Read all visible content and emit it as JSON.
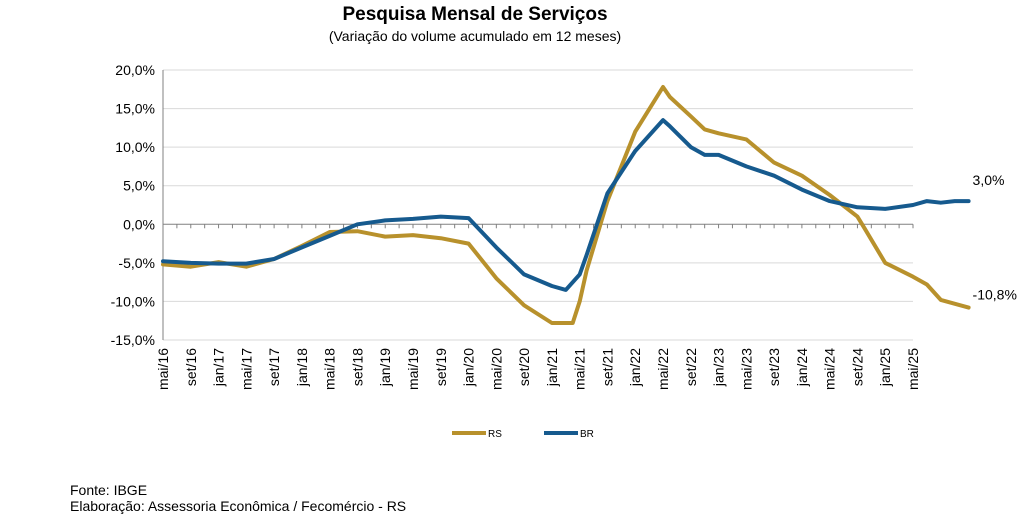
{
  "chart_data": {
    "type": "line",
    "title": "Pesquisa Mensal de Serviços",
    "subtitle": "(Variação do volume acumulado em 12 meses)",
    "xlabel": "",
    "ylabel": "",
    "ylim": [
      -15,
      20
    ],
    "y_ticks": [
      20,
      15,
      10,
      5,
      0,
      -5,
      -10,
      -15
    ],
    "y_tick_labels": [
      "20,0%",
      "15,0%",
      "10,0%",
      "5,0%",
      "0,0%",
      "-5,0%",
      "-10,0%",
      "-15,0%"
    ],
    "x_tick_labels": [
      "mai/16",
      "set/16",
      "jan/17",
      "mai/17",
      "set/17",
      "jan/18",
      "mai/18",
      "set/18",
      "jan/19",
      "mai/19",
      "set/19",
      "jan/20",
      "mai/20",
      "set/20",
      "jan/21",
      "mai/21",
      "set/21",
      "jan/22",
      "mai/22",
      "set/22",
      "jan/23",
      "mai/23",
      "set/23",
      "jan/24",
      "mai/24",
      "set/24",
      "jan/25",
      "mai/25"
    ],
    "grid": true,
    "legend": "bottom",
    "series": [
      {
        "name": "RS",
        "color": "#b8912c",
        "points": [
          [
            0,
            -5.2
          ],
          [
            4,
            -5.5
          ],
          [
            8,
            -4.9
          ],
          [
            12,
            -5.5
          ],
          [
            16,
            -4.5
          ],
          [
            20,
            -2.8
          ],
          [
            24,
            -1.0
          ],
          [
            28,
            -0.9
          ],
          [
            32,
            -1.6
          ],
          [
            36,
            -1.4
          ],
          [
            40,
            -1.8
          ],
          [
            44,
            -2.5
          ],
          [
            48,
            -7.0
          ],
          [
            52,
            -10.5
          ],
          [
            56,
            -12.8
          ],
          [
            59,
            -12.8
          ],
          [
            60,
            -10.0
          ],
          [
            61,
            -6.0
          ],
          [
            64,
            3.0
          ],
          [
            68,
            12.0
          ],
          [
            72,
            17.8
          ],
          [
            73,
            16.5
          ],
          [
            76,
            14.0
          ],
          [
            78,
            12.3
          ],
          [
            80,
            11.8
          ],
          [
            84,
            11.0
          ],
          [
            88,
            8.0
          ],
          [
            92,
            6.3
          ],
          [
            96,
            3.8
          ],
          [
            100,
            1.0
          ],
          [
            101,
            -0.5
          ],
          [
            104,
            -5.0
          ],
          [
            108,
            -6.8
          ],
          [
            110,
            -7.8
          ],
          [
            112,
            -9.8
          ],
          [
            116,
            -10.8
          ]
        ]
      },
      {
        "name": "BR",
        "color": "#165a8e",
        "points": [
          [
            0,
            -4.8
          ],
          [
            4,
            -5.0
          ],
          [
            8,
            -5.1
          ],
          [
            12,
            -5.1
          ],
          [
            16,
            -4.5
          ],
          [
            20,
            -3.0
          ],
          [
            24,
            -1.5
          ],
          [
            28,
            0.0
          ],
          [
            32,
            0.5
          ],
          [
            36,
            0.7
          ],
          [
            40,
            1.0
          ],
          [
            44,
            0.8
          ],
          [
            48,
            -3.0
          ],
          [
            52,
            -6.5
          ],
          [
            56,
            -8.0
          ],
          [
            58,
            -8.5
          ],
          [
            60,
            -6.5
          ],
          [
            61,
            -4.0
          ],
          [
            64,
            4.0
          ],
          [
            68,
            9.5
          ],
          [
            72,
            13.5
          ],
          [
            73,
            12.7
          ],
          [
            76,
            10.0
          ],
          [
            78,
            9.0
          ],
          [
            80,
            9.0
          ],
          [
            84,
            7.5
          ],
          [
            88,
            6.3
          ],
          [
            92,
            4.5
          ],
          [
            96,
            3.0
          ],
          [
            100,
            2.2
          ],
          [
            104,
            2.0
          ],
          [
            108,
            2.5
          ],
          [
            110,
            3.0
          ],
          [
            112,
            2.8
          ],
          [
            114,
            3.0
          ],
          [
            116,
            3.0
          ]
        ]
      }
    ],
    "annotations": [
      {
        "series": "BR",
        "label": "3,0%"
      },
      {
        "series": "RS",
        "label": "-10,8%"
      }
    ]
  },
  "footer": {
    "source": "Fonte: IBGE",
    "elaboration": "Elaboração: Assessoria Econômica / Fecomércio - RS"
  }
}
